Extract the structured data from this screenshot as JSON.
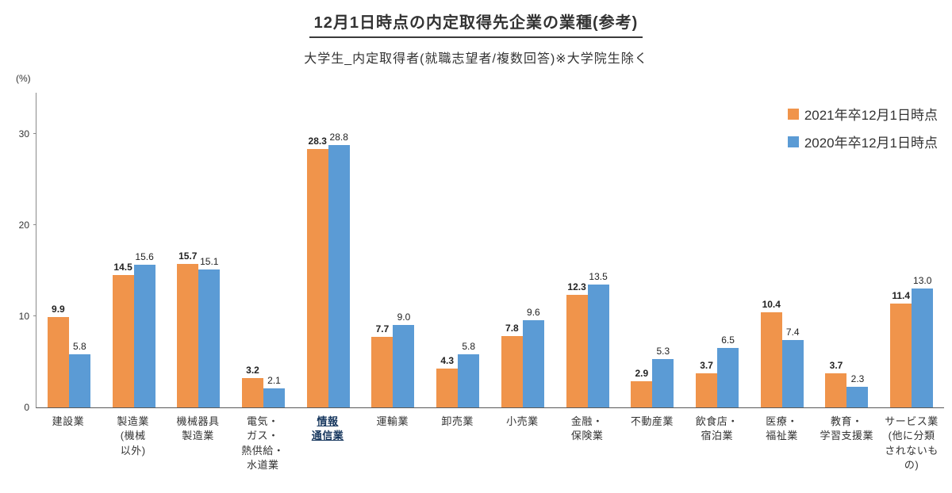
{
  "header": {
    "title": "12月1日時点の内定取得先企業の業種(参考)",
    "subtitle": "大学生_内定取得者(就職志望者/複数回答)※大学院生除く"
  },
  "chart_data": {
    "type": "bar",
    "title": "12月1日時点の内定取得先企業の業種(参考)",
    "subtitle": "大学生_内定取得者(就職志望者/複数回答)※大学院生除く",
    "ylabel": "(%)",
    "ylim": [
      0,
      34.5
    ],
    "yticks": [
      0,
      10,
      20,
      30
    ],
    "grid": false,
    "legend_position": "top-right",
    "categories": [
      [
        "建設業"
      ],
      [
        "製造業",
        "(機械",
        "以外)"
      ],
      [
        "機械器具",
        "製造業"
      ],
      [
        "電気・",
        "ガス・",
        "熱供給・",
        "水道業"
      ],
      [
        "情報",
        "通信業"
      ],
      [
        "運輸業"
      ],
      [
        "卸売業"
      ],
      [
        "小売業"
      ],
      [
        "金融・",
        "保険業"
      ],
      [
        "不動産業"
      ],
      [
        "飲食店・",
        "宿泊業"
      ],
      [
        "医療・",
        "福祉業"
      ],
      [
        "教育・",
        "学習支援業"
      ],
      [
        "サービス業",
        "(他に分類",
        "されないも",
        "の)"
      ]
    ],
    "highlight_index": 4,
    "series": [
      {
        "name": "2021年卒12月1日時点",
        "color": "#F0944B",
        "values": [
          9.9,
          14.5,
          15.7,
          3.2,
          28.3,
          7.7,
          4.3,
          7.8,
          12.3,
          2.9,
          3.7,
          10.4,
          3.7,
          11.4
        ]
      },
      {
        "name": "2020年卒12月1日時点",
        "color": "#5B9BD5",
        "values": [
          5.8,
          15.6,
          15.1,
          2.1,
          28.8,
          9.0,
          5.8,
          9.6,
          13.5,
          5.3,
          6.5,
          7.4,
          2.3,
          13.0
        ]
      }
    ],
    "colors": {
      "axis": "#8a8a8a",
      "highlight_label": "#17375e",
      "title_underline": "#3a3a3a"
    }
  }
}
